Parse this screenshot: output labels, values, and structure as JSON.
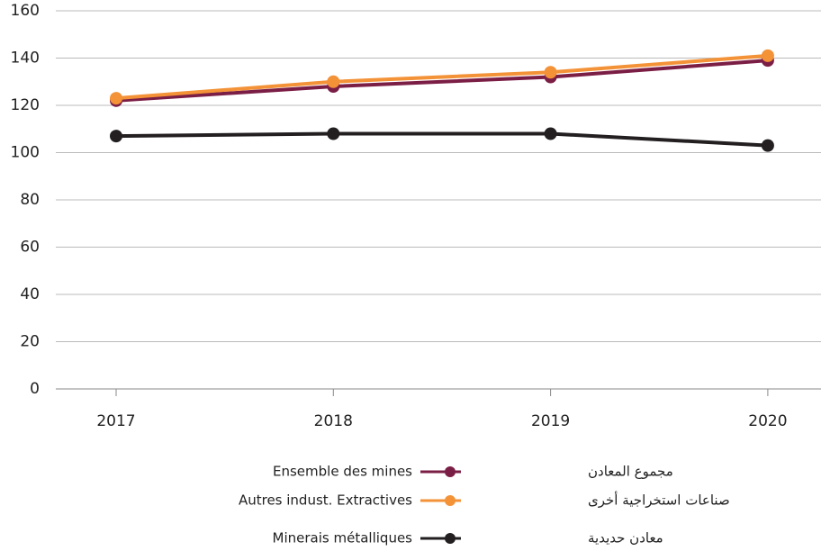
{
  "chart_data": {
    "type": "line",
    "categories": [
      "2017",
      "2018",
      "2019",
      "2020"
    ],
    "series": [
      {
        "name": "Ensemble des mines",
        "name_ar": "مجموع المعادن",
        "color": "#7b1e45",
        "values": [
          122,
          128,
          132,
          139
        ]
      },
      {
        "name": "Autres indust. Extractives",
        "name_ar": "صناعات استخراجية أخرى",
        "color": "#f39237",
        "values": [
          123,
          130,
          134,
          141
        ]
      },
      {
        "name": "Minerais métalliques",
        "name_ar": "معادن حديدية",
        "color": "#231f20",
        "values": [
          107,
          108,
          108,
          103
        ]
      }
    ],
    "ylim": [
      0,
      160
    ],
    "yticks": [
      0,
      20,
      40,
      60,
      80,
      100,
      120,
      140,
      160
    ],
    "grid": true
  }
}
